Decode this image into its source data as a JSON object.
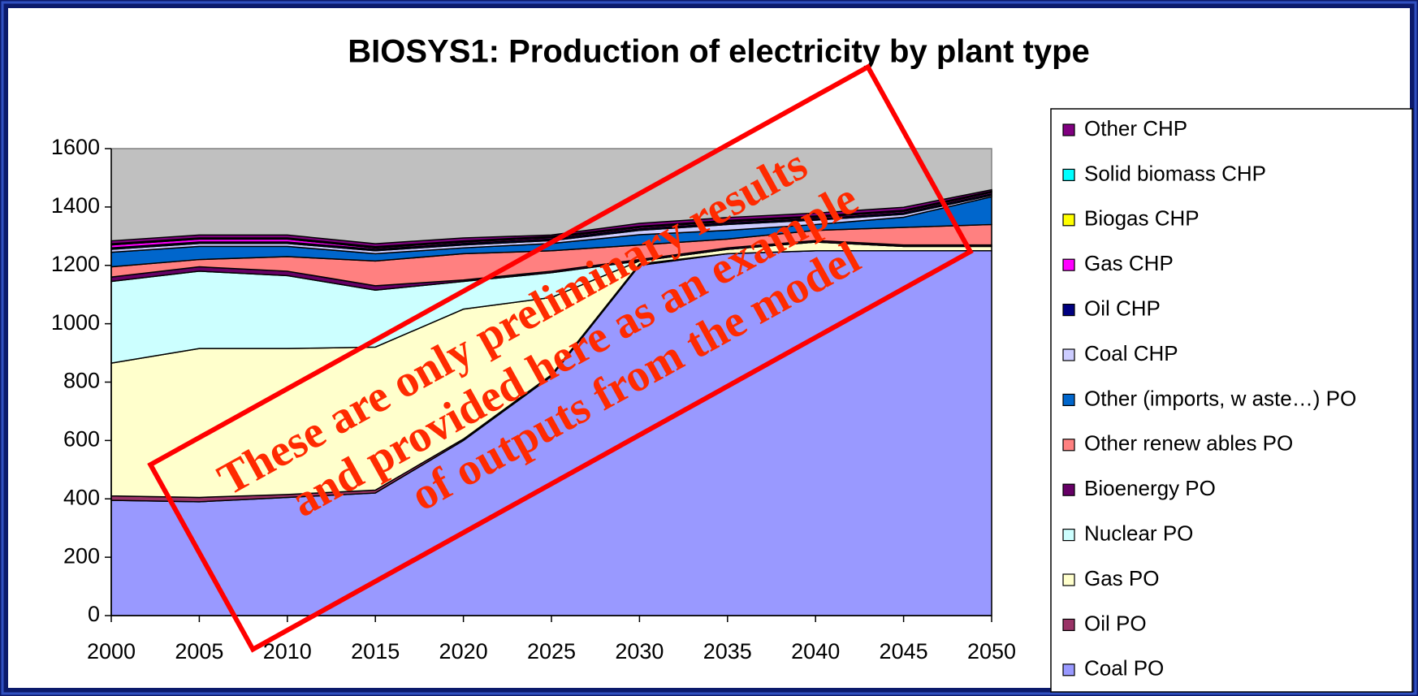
{
  "chart_data": {
    "type": "stacked_area",
    "title": "BIOSYS1: Production of electricity by plant type",
    "x": [
      2000,
      2005,
      2010,
      2015,
      2020,
      2025,
      2030,
      2035,
      2040,
      2045,
      2050
    ],
    "xlim": [
      2000,
      2050
    ],
    "xticks": [
      2000,
      2005,
      2010,
      2015,
      2020,
      2025,
      2030,
      2035,
      2040,
      2045,
      2050
    ],
    "ylim": [
      0,
      1600
    ],
    "yticks": [
      0,
      200,
      400,
      600,
      800,
      1000,
      1200,
      1400,
      1600
    ],
    "plot_background": "#c0c0c0",
    "series": [
      {
        "name": "Coal PO",
        "color": "#9999ff",
        "values": [
          395,
          390,
          405,
          420,
          600,
          820,
          1200,
          1240,
          1250,
          1250,
          1250
        ]
      },
      {
        "name": "Oil PO",
        "color": "#993366",
        "values": [
          15,
          15,
          10,
          10,
          5,
          5,
          5,
          0,
          0,
          0,
          0
        ]
      },
      {
        "name": "Gas PO",
        "color": "#ffffcc",
        "values": [
          455,
          510,
          500,
          490,
          445,
          265,
          10,
          15,
          30,
          15,
          15
        ]
      },
      {
        "name": "Nuclear PO",
        "color": "#ccffff",
        "values": [
          280,
          265,
          250,
          195,
          95,
          85,
          0,
          0,
          0,
          0,
          0
        ]
      },
      {
        "name": "Bioenergy PO",
        "color": "#660066",
        "values": [
          15,
          15,
          15,
          15,
          5,
          5,
          5,
          5,
          5,
          5,
          5
        ]
      },
      {
        "name": "Other renew ables PO",
        "color": "#ff8080",
        "values": [
          35,
          25,
          50,
          85,
          90,
          70,
          50,
          30,
          35,
          60,
          70
        ]
      },
      {
        "name": "Other (imports, w aste…) PO",
        "color": "#0066cc",
        "values": [
          50,
          45,
          35,
          25,
          20,
          25,
          35,
          30,
          20,
          35,
          95
        ]
      },
      {
        "name": "Coal CHP",
        "color": "#ccccff",
        "values": [
          10,
          10,
          10,
          10,
          10,
          10,
          15,
          20,
          15,
          10,
          5
        ]
      },
      {
        "name": "Oil CHP",
        "color": "#000080",
        "values": [
          5,
          5,
          5,
          5,
          5,
          5,
          5,
          5,
          5,
          5,
          5
        ]
      },
      {
        "name": "Gas CHP",
        "color": "#ff00ff",
        "values": [
          10,
          10,
          10,
          5,
          5,
          5,
          5,
          5,
          5,
          5,
          5
        ]
      },
      {
        "name": "Biogas CHP",
        "color": "#ffff00",
        "values": [
          2,
          2,
          2,
          2,
          2,
          2,
          2,
          2,
          2,
          2,
          2
        ]
      },
      {
        "name": "Solid biomass CHP",
        "color": "#00ffff",
        "values": [
          2,
          2,
          2,
          2,
          2,
          2,
          2,
          2,
          2,
          2,
          2
        ]
      },
      {
        "name": "Other CHP",
        "color": "#800080",
        "values": [
          10,
          10,
          10,
          10,
          10,
          5,
          10,
          10,
          10,
          10,
          5
        ]
      }
    ],
    "annotations": [
      "These are only preliminary results",
      "and provided here as an example",
      "of outputs from the model"
    ]
  }
}
